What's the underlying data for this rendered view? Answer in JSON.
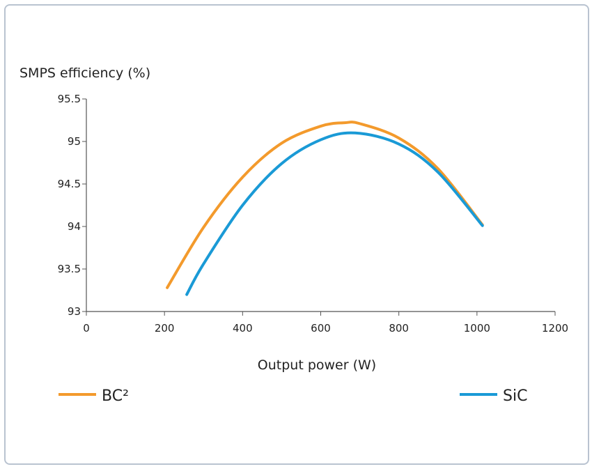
{
  "chart_data": {
    "type": "line",
    "title": "",
    "ylabel": "SMPS efficiency (%)",
    "xlabel": "Output power (W)",
    "xlim": [
      0,
      1200
    ],
    "ylim": [
      93,
      95.5
    ],
    "xticks": [
      "0",
      "200",
      "400",
      "600",
      "800",
      "1000",
      "1200"
    ],
    "yticks": [
      "93",
      "93.5",
      "94",
      "94.5",
      "95",
      "95.5"
    ],
    "grid": false,
    "legend_placement": "bottom",
    "series": [
      {
        "name": "BC²",
        "color": "#f39a2c",
        "x": [
          207,
          300,
          400,
          500,
          600,
          661,
          700,
          800,
          900,
          1014
        ],
        "y": [
          93.28,
          93.99,
          94.58,
          94.98,
          95.18,
          95.22,
          95.21,
          95.04,
          94.68,
          94.02
        ]
      },
      {
        "name": "SiC",
        "color": "#1a9ad6",
        "x": [
          257,
          300,
          400,
          500,
          600,
          688,
          800,
          900,
          1014
        ],
        "y": [
          93.2,
          93.56,
          94.25,
          94.74,
          95.02,
          95.1,
          94.97,
          94.64,
          94.01
        ]
      }
    ]
  }
}
